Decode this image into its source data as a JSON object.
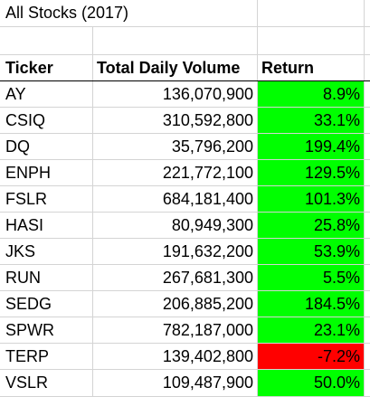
{
  "sheet": {
    "title": "All Stocks (2017)",
    "headers": {
      "ticker": "Ticker",
      "volume": "Total Daily Volume",
      "return": "Return"
    },
    "colors": {
      "positive_return": "#00ff00",
      "negative_return": "#ff0000",
      "gridline": "#d4d4d4"
    },
    "rows": [
      {
        "ticker": "AY",
        "volume": "136,070,900",
        "return": "8.9%",
        "status": "positive"
      },
      {
        "ticker": "CSIQ",
        "volume": "310,592,800",
        "return": "33.1%",
        "status": "positive"
      },
      {
        "ticker": "DQ",
        "volume": "35,796,200",
        "return": "199.4%",
        "status": "positive"
      },
      {
        "ticker": "ENPH",
        "volume": "221,772,100",
        "return": "129.5%",
        "status": "positive"
      },
      {
        "ticker": "FSLR",
        "volume": "684,181,400",
        "return": "101.3%",
        "status": "positive"
      },
      {
        "ticker": "HASI",
        "volume": "80,949,300",
        "return": "25.8%",
        "status": "positive"
      },
      {
        "ticker": "JKS",
        "volume": "191,632,200",
        "return": "53.9%",
        "status": "positive"
      },
      {
        "ticker": "RUN",
        "volume": "267,681,300",
        "return": "5.5%",
        "status": "positive"
      },
      {
        "ticker": "SEDG",
        "volume": "206,885,200",
        "return": "184.5%",
        "status": "positive"
      },
      {
        "ticker": "SPWR",
        "volume": "782,187,000",
        "return": "23.1%",
        "status": "positive"
      },
      {
        "ticker": "TERP",
        "volume": "139,402,800",
        "return": "-7.2%",
        "status": "negative"
      },
      {
        "ticker": "VSLR",
        "volume": "109,487,900",
        "return": "50.0%",
        "status": "positive"
      }
    ]
  }
}
